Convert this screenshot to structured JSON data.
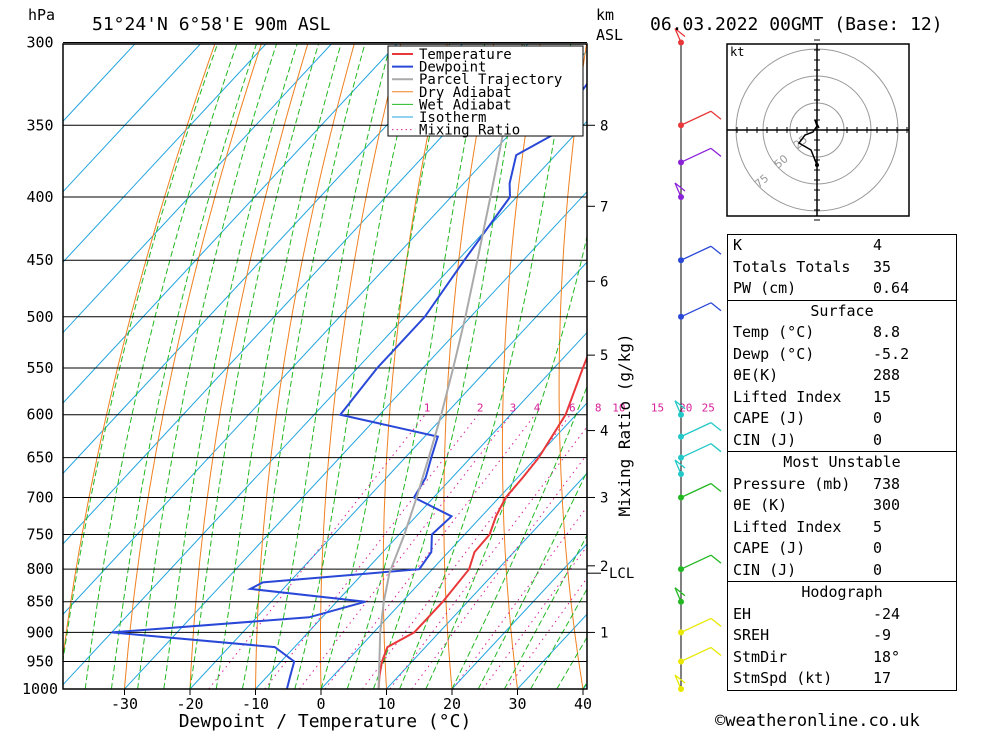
{
  "header": {
    "pressure_unit": "hPa",
    "location": "51°24'N  6°58'E  90m  ASL",
    "height_unit_km": "km",
    "height_unit_asl": "ASL",
    "datetime": "06.03.2022  00GMT  (Base: 12)"
  },
  "chart_data": {
    "type": "line",
    "xlabel": "Dewpoint / Temperature (°C)",
    "ylabel": "hPa",
    "x_ticks": [
      -30,
      -20,
      -10,
      0,
      10,
      20,
      30,
      40
    ],
    "xlim": [
      -40,
      40
    ],
    "pressure_levels": [
      300,
      350,
      400,
      450,
      500,
      550,
      600,
      650,
      700,
      750,
      800,
      850,
      900,
      950,
      1000
    ],
    "ylim": [
      1000,
      300
    ],
    "height_km_ticks": [
      {
        "label": "8",
        "p": 350
      },
      {
        "label": "7",
        "p": 407
      },
      {
        "label": "6",
        "p": 468
      },
      {
        "label": "5",
        "p": 537
      },
      {
        "label": "4",
        "p": 618
      },
      {
        "label": "3",
        "p": 700
      },
      {
        "label": "2",
        "p": 795
      },
      {
        "label": "1",
        "p": 900
      }
    ],
    "lcl": {
      "label": "LCL",
      "p": 806
    },
    "secondary_ylabel": "Mixing Ratio (g/kg)",
    "mixing_ratio_labels": [
      "1",
      "2",
      "3",
      "4",
      "6",
      "8",
      "10",
      "15",
      "20",
      "25"
    ],
    "legend": [
      "Temperature",
      "Dewpoint",
      "Parcel Trajectory",
      "Dry Adiabat",
      "Wet Adiabat",
      "Isotherm",
      "Mixing Ratio"
    ],
    "legend_position": "top-right",
    "colors": {
      "temperature": "#e8383a",
      "dewpoint": "#2a48d8",
      "parcel": "#aaaaaa",
      "dry_adiabat": "#f08020",
      "wet_adiabat": "#22b822",
      "isotherm": "#22a4e0",
      "mixing_ratio": "#d8209a"
    },
    "series": [
      {
        "name": "Temperature",
        "points": [
          [
            1000,
            8.8
          ],
          [
            975,
            7.0
          ],
          [
            950,
            5.4
          ],
          [
            925,
            4.2
          ],
          [
            900,
            6.2
          ],
          [
            850,
            6.2
          ],
          [
            800,
            5.6
          ],
          [
            775,
            4.0
          ],
          [
            750,
            3.8
          ],
          [
            725,
            2.2
          ],
          [
            700,
            1.0
          ],
          [
            675,
            0.8
          ],
          [
            650,
            0.4
          ],
          [
            600,
            -1.6
          ],
          [
            550,
            -5.6
          ],
          [
            500,
            -9.8
          ],
          [
            450,
            -14.8
          ],
          [
            400,
            -21.2
          ],
          [
            350,
            -27.6
          ],
          [
            300,
            -36.0
          ]
        ]
      },
      {
        "name": "Dewpoint",
        "points": [
          [
            1000,
            -5.2
          ],
          [
            975,
            -6.6
          ],
          [
            950,
            -8.0
          ],
          [
            925,
            -13.0
          ],
          [
            900,
            -40.0
          ],
          [
            875,
            -12.0
          ],
          [
            850,
            -5.6
          ],
          [
            830,
            -25.0
          ],
          [
            820,
            -24.0
          ],
          [
            800,
            -2.0
          ],
          [
            775,
            -2.6
          ],
          [
            750,
            -5.0
          ],
          [
            725,
            -4.6
          ],
          [
            700,
            -13.0
          ],
          [
            675,
            -14.0
          ],
          [
            650,
            -16.0
          ],
          [
            625,
            -18.0
          ],
          [
            600,
            -36.0
          ],
          [
            550,
            -37.0
          ],
          [
            500,
            -37.0
          ],
          [
            450,
            -39.0
          ],
          [
            400,
            -41.0
          ],
          [
            390,
            -43.0
          ],
          [
            370,
            -46.0
          ],
          [
            350,
            -42.0
          ],
          [
            330,
            -45.0
          ],
          [
            310,
            -46.0
          ],
          [
            300,
            -48.0
          ]
        ]
      },
      {
        "name": "Parcel Trajectory",
        "points": [
          [
            1000,
            8.8
          ],
          [
            950,
            5.0
          ],
          [
            900,
            1.0
          ],
          [
            850,
            -2.8
          ],
          [
            806,
            -6.0
          ],
          [
            750,
            -9.2
          ],
          [
            700,
            -12.6
          ],
          [
            650,
            -16.4
          ],
          [
            600,
            -20.6
          ],
          [
            550,
            -25.4
          ],
          [
            500,
            -30.8
          ],
          [
            450,
            -37.0
          ],
          [
            400,
            -44.0
          ],
          [
            350,
            -52.0
          ],
          [
            300,
            -61.0
          ]
        ]
      }
    ]
  },
  "wind_profile": {
    "colors_by_layer": [
      "#e8e800",
      "#22b822",
      "#22c8c8",
      "#2a48d8",
      "#8a22d8",
      "#e8383a"
    ],
    "levels_p": [
      1000,
      950,
      900,
      850,
      800,
      700,
      670,
      650,
      625,
      600,
      500,
      450,
      400,
      375,
      350,
      300
    ]
  },
  "hodograph": {
    "unit": "kt",
    "ring_labels": [
      "25",
      "50",
      "75"
    ]
  },
  "indices": [
    {
      "label": "K",
      "value": "4"
    },
    {
      "label": "Totals Totals",
      "value": "35"
    },
    {
      "label": "PW (cm)",
      "value": "0.64"
    }
  ],
  "surface": {
    "title": "Surface",
    "rows": [
      {
        "label": "Temp (°C)",
        "value": "8.8"
      },
      {
        "label": "Dewp (°C)",
        "value": "-5.2"
      },
      {
        "label": "θE(K)",
        "value": "288"
      },
      {
        "label": "Lifted Index",
        "value": "15"
      },
      {
        "label": "CAPE (J)",
        "value": "0"
      },
      {
        "label": "CIN (J)",
        "value": "0"
      }
    ]
  },
  "most_unstable": {
    "title": "Most Unstable",
    "rows": [
      {
        "label": "Pressure (mb)",
        "value": "738"
      },
      {
        "label": "θE (K)",
        "value": "300"
      },
      {
        "label": "Lifted Index",
        "value": "5"
      },
      {
        "label": "CAPE (J)",
        "value": "0"
      },
      {
        "label": "CIN (J)",
        "value": "0"
      }
    ]
  },
  "hodograph_table": {
    "title": "Hodograph",
    "rows": [
      {
        "label": "EH",
        "value": "-24"
      },
      {
        "label": "SREH",
        "value": "-9"
      },
      {
        "label": "StmDir",
        "value": "18°"
      },
      {
        "label": "StmSpd (kt)",
        "value": "17"
      }
    ]
  },
  "footer": {
    "copyright": "©weatheronline.co.uk"
  }
}
